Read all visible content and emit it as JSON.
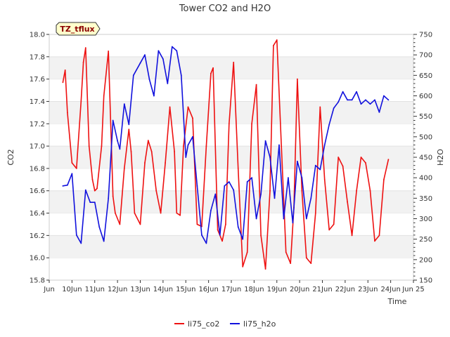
{
  "chart_data": {
    "type": "line",
    "title": "Tower CO2 and H2O",
    "xlabel": "Time",
    "ylabel_left": "CO2",
    "ylabel_right": "H2O",
    "site_tag": "TZ_tflux",
    "xlim": [
      9,
      25
    ],
    "ylim_left": [
      15.8,
      18.0
    ],
    "ylim_right": [
      150,
      750
    ],
    "x_tick_values": [
      9,
      10,
      11,
      12,
      13,
      14,
      15,
      16,
      17,
      18,
      19,
      20,
      21,
      22,
      23,
      24,
      25
    ],
    "x_tick_labels": [
      "Jun",
      "10Jun",
      "11Jun",
      "12Jun",
      "13Jun",
      "14Jun",
      "15Jun",
      "16Jun",
      "17Jun",
      "18Jun",
      "19Jun",
      "20Jun",
      "21Jun",
      "22Jun",
      "23Jun",
      "24Jun",
      "Jun 25"
    ],
    "y_left_ticks": [
      "15.8",
      "16.0",
      "16.2",
      "16.4",
      "16.6",
      "16.8",
      "17.0",
      "17.2",
      "17.4",
      "17.6",
      "17.8",
      "18.0"
    ],
    "y_right_ticks": [
      "150",
      "200",
      "250",
      "300",
      "350",
      "400",
      "450",
      "500",
      "550",
      "600",
      "650",
      "700",
      "750"
    ],
    "series": [
      {
        "name": "li75_co2",
        "axis": "left",
        "color": "#ee1111",
        "x": [
          9.6,
          9.7,
          9.8,
          10.0,
          10.2,
          10.4,
          10.5,
          10.6,
          10.75,
          10.9,
          11.0,
          11.1,
          11.3,
          11.4,
          11.6,
          11.8,
          11.9,
          12.1,
          12.3,
          12.5,
          12.6,
          12.75,
          13.0,
          13.2,
          13.35,
          13.5,
          13.7,
          13.9,
          14.1,
          14.3,
          14.5,
          14.6,
          14.75,
          14.9,
          15.1,
          15.3,
          15.5,
          15.7,
          15.9,
          16.1,
          16.2,
          16.4,
          16.6,
          16.75,
          16.9,
          17.1,
          17.3,
          17.5,
          17.7,
          17.9,
          18.1,
          18.3,
          18.5,
          18.7,
          18.85,
          19.0,
          19.2,
          19.4,
          19.6,
          19.75,
          19.9,
          20.1,
          20.3,
          20.5,
          20.7,
          20.9,
          21.1,
          21.3,
          21.5,
          21.7,
          21.9,
          22.1,
          22.3,
          22.5,
          22.7,
          22.9,
          23.1,
          23.3,
          23.5,
          23.7,
          23.9
        ],
        "values": [
          17.57,
          17.68,
          17.3,
          16.85,
          16.8,
          17.4,
          17.75,
          17.88,
          17.0,
          16.7,
          16.6,
          16.62,
          17.0,
          17.45,
          17.85,
          16.55,
          16.4,
          16.3,
          16.8,
          17.15,
          16.95,
          16.4,
          16.3,
          16.85,
          17.05,
          16.95,
          16.6,
          16.4,
          16.85,
          17.35,
          16.95,
          16.4,
          16.38,
          17.0,
          17.35,
          17.25,
          16.3,
          16.28,
          17.0,
          17.65,
          17.7,
          16.25,
          16.15,
          16.3,
          17.2,
          17.75,
          16.8,
          15.92,
          16.05,
          17.2,
          17.55,
          16.2,
          15.9,
          16.6,
          17.9,
          17.95,
          17.0,
          16.05,
          15.95,
          16.45,
          17.6,
          16.6,
          16.0,
          15.95,
          16.4,
          17.35,
          16.7,
          16.25,
          16.3,
          16.9,
          16.82,
          16.5,
          16.2,
          16.6,
          16.9,
          16.85,
          16.6,
          16.15,
          16.2,
          16.7,
          16.88
        ]
      },
      {
        "name": "li75_h2o",
        "axis": "right",
        "color": "#1111dd",
        "x": [
          9.6,
          9.8,
          10.0,
          10.2,
          10.4,
          10.6,
          10.8,
          11.0,
          11.2,
          11.4,
          11.6,
          11.8,
          12.0,
          12.1,
          12.3,
          12.5,
          12.7,
          13.0,
          13.2,
          13.4,
          13.6,
          13.8,
          14.0,
          14.2,
          14.4,
          14.6,
          14.8,
          15.0,
          15.1,
          15.3,
          15.5,
          15.7,
          15.9,
          16.1,
          16.3,
          16.5,
          16.7,
          16.9,
          17.1,
          17.3,
          17.5,
          17.7,
          17.9,
          18.1,
          18.3,
          18.5,
          18.7,
          18.9,
          19.1,
          19.3,
          19.5,
          19.7,
          19.9,
          20.1,
          20.3,
          20.5,
          20.7,
          20.9,
          21.1,
          21.3,
          21.5,
          21.7,
          21.9,
          22.1,
          22.3,
          22.5,
          22.7,
          22.9,
          23.1,
          23.3,
          23.5,
          23.7,
          23.9
        ],
        "values": [
          380,
          382,
          410,
          260,
          240,
          370,
          340,
          340,
          280,
          245,
          350,
          540,
          490,
          470,
          580,
          530,
          650,
          680,
          700,
          640,
          600,
          710,
          690,
          630,
          720,
          710,
          650,
          450,
          480,
          500,
          380,
          260,
          240,
          320,
          360,
          260,
          380,
          390,
          370,
          280,
          250,
          390,
          400,
          300,
          360,
          490,
          450,
          350,
          480,
          300,
          400,
          290,
          440,
          400,
          300,
          350,
          430,
          420,
          480,
          530,
          570,
          585,
          610,
          590,
          590,
          610,
          580,
          590,
          580,
          590,
          560,
          600,
          590
        ]
      }
    ],
    "legend_position": "bottom-center"
  }
}
